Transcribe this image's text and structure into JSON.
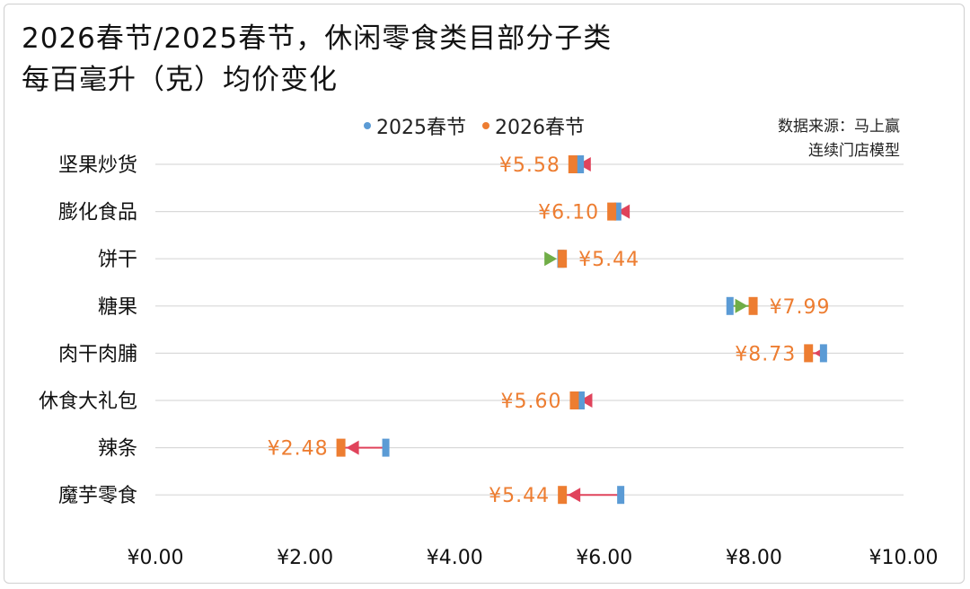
{
  "title_lines": [
    "2026春节/2025春节，休闲零食类目部分子类",
    "每百毫升（克）均价变化"
  ],
  "source_lines": [
    "数据来源：马上赢",
    "连续门店模型"
  ],
  "colors": {
    "series_2025": "#5B9BD5",
    "series_2026": "#ED7D31",
    "arrow_up": "#70AD47",
    "arrow_down": "#E0435B",
    "grid": "#d9d9d9"
  },
  "chart_data": {
    "type": "dumbbell",
    "title": "2026春节/2025春节，休闲零食类目部分子类每百毫升（克）均价变化",
    "xlim": [
      0,
      10
    ],
    "xticks": [
      "¥0.00",
      "¥2.00",
      "¥4.00",
      "¥6.00",
      "¥8.00",
      "¥10.00"
    ],
    "xtick_values": [
      0,
      2,
      4,
      6,
      8,
      10
    ],
    "grid": true,
    "legend_position": "top-center",
    "categories": [
      "坚果炒货",
      "膨化食品",
      "饼干",
      "糖果",
      "肉干肉脯",
      "休食大礼包",
      "辣条",
      "魔芋零食"
    ],
    "series": [
      {
        "name": "2025春节",
        "values": [
          5.68,
          6.18,
          5.42,
          7.68,
          8.93,
          5.69,
          3.08,
          6.22
        ]
      },
      {
        "name": "2026春节",
        "values": [
          5.58,
          6.1,
          5.44,
          7.99,
          8.73,
          5.6,
          2.48,
          5.44
        ]
      }
    ],
    "data_labels": [
      "¥5.58",
      "¥6.10",
      "¥5.44",
      "¥7.99",
      "¥8.73",
      "¥5.60",
      "¥2.48",
      "¥5.44"
    ]
  }
}
